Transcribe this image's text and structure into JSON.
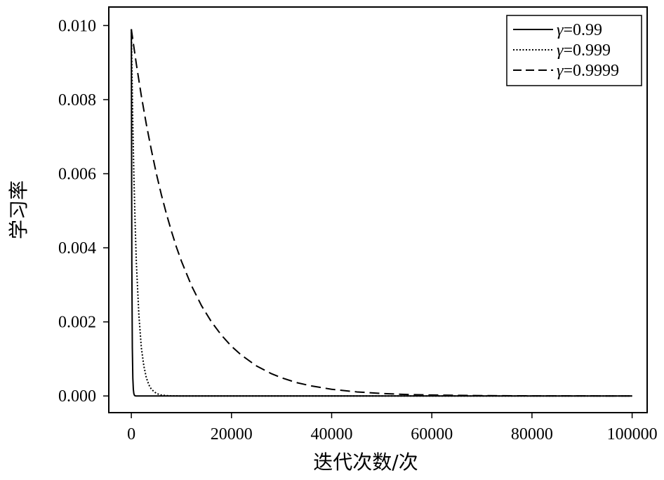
{
  "chart_data": {
    "type": "line",
    "xlabel": "迭代次数/次",
    "ylabel": "学习率",
    "xlim": [
      -4500,
      103000
    ],
    "ylim": [
      -0.00045,
      0.0105
    ],
    "xticks": [
      {
        "value": 0,
        "label": "0"
      },
      {
        "value": 20000,
        "label": "20000"
      },
      {
        "value": 40000,
        "label": "40000"
      },
      {
        "value": 60000,
        "label": "60000"
      },
      {
        "value": 80000,
        "label": "80000"
      },
      {
        "value": 100000,
        "label": "100000"
      }
    ],
    "yticks": [
      {
        "value": 0.0,
        "label": "0.000"
      },
      {
        "value": 0.002,
        "label": "0.002"
      },
      {
        "value": 0.004,
        "label": "0.004"
      },
      {
        "value": 0.006,
        "label": "0.006"
      },
      {
        "value": 0.008,
        "label": "0.008"
      },
      {
        "value": 0.01,
        "label": "0.010"
      }
    ],
    "grid": false,
    "legend_position": "top-right",
    "series": [
      {
        "name": "γ=0.99",
        "legend_symbol": "γ",
        "legend_value": "=0.99",
        "style": "solid",
        "color": "#000000",
        "x": [
          0,
          100,
          200,
          300,
          400,
          500,
          600,
          700,
          800,
          1000,
          2000,
          100000
        ],
        "y": [
          0.0099,
          0.0036,
          0.0013,
          0.00048,
          0.00018,
          6.5e-05,
          2.4e-05,
          8.8e-06,
          3.2e-06,
          0.0,
          0.0,
          0.0
        ]
      },
      {
        "name": "γ=0.999",
        "legend_symbol": "γ",
        "legend_value": "=0.999",
        "style": "dotted",
        "color": "#000000",
        "x": [
          0,
          250,
          500,
          750,
          1000,
          1500,
          2000,
          2500,
          3000,
          3500,
          4000,
          5000,
          6000,
          7000,
          8000,
          10000,
          100000
        ],
        "y": [
          0.0099,
          0.0077,
          0.006,
          0.0047,
          0.0036,
          0.0022,
          0.0013,
          0.00081,
          0.00049,
          0.0003,
          0.00018,
          6.7e-05,
          2.5e-05,
          9e-06,
          3.3e-06,
          0.0,
          0.0
        ]
      },
      {
        "name": "γ=0.9999",
        "legend_symbol": "γ",
        "legend_value": "=0.9999",
        "style": "dashed",
        "color": "#000000",
        "x": [
          0,
          1000,
          2000,
          3000,
          4000,
          5000,
          6000,
          7000,
          8000,
          9000,
          10000,
          12000,
          14000,
          16000,
          18000,
          20000,
          22000,
          25000,
          28000,
          30000,
          33000,
          36000,
          40000,
          45000,
          50000,
          55000,
          60000,
          70000,
          80000,
          90000,
          100000
        ],
        "y": [
          0.0099,
          0.00896,
          0.0081,
          0.00733,
          0.00664,
          0.006,
          0.00543,
          0.00492,
          0.00445,
          0.00402,
          0.00364,
          0.00298,
          0.00244,
          0.002,
          0.00164,
          0.00134,
          0.0011,
          0.00081,
          0.0006,
          0.00049,
          0.00036,
          0.00027,
          0.00018,
          0.00011,
          6.7e-05,
          4e-05,
          2.5e-05,
          9.1e-06,
          3.3e-06,
          1.2e-06,
          4.5e-07
        ]
      }
    ]
  }
}
